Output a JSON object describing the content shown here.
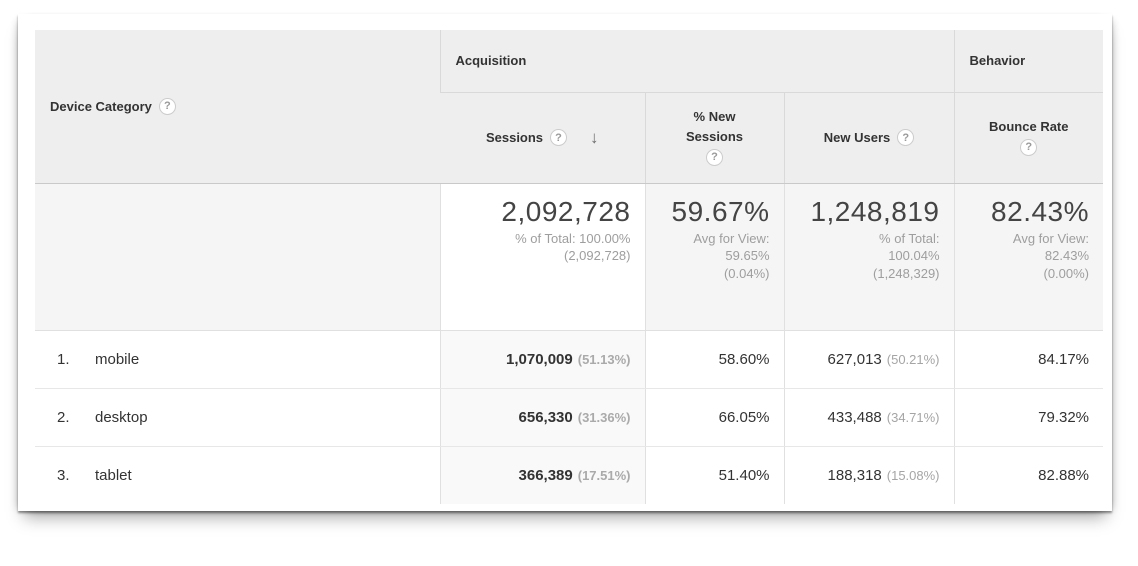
{
  "icons": {
    "help": "?",
    "sort_descending": "↓"
  },
  "colors": {
    "header_bg": "#eeeeee",
    "sorted_column_bg": "#f9f9f9",
    "summary_row_bg": "#f5f5f5",
    "text_primary": "#333333",
    "text_muted": "#9e9e9e"
  },
  "table": {
    "dimension_header": {
      "label": "Device Category"
    },
    "groups": {
      "acquisition": "Acquisition",
      "behavior": "Behavior"
    },
    "columns": {
      "sessions": {
        "label": "Sessions"
      },
      "pct_new_sessions": {
        "label_line1": "% New",
        "label_line2": "Sessions"
      },
      "new_users": {
        "label": "New Users"
      },
      "bounce_rate": {
        "label": "Bounce Rate"
      }
    },
    "summary": {
      "sessions": {
        "value": "2,092,728",
        "note1": "% of Total: 100.00%",
        "note2": "(2,092,728)"
      },
      "pct_new_sessions": {
        "value": "59.67%",
        "note1": "Avg for View:",
        "note2": "59.65%",
        "note3": "(0.04%)"
      },
      "new_users": {
        "value": "1,248,819",
        "note1": "% of Total:",
        "note2": "100.04%",
        "note3": "(1,248,329)"
      },
      "bounce_rate": {
        "value": "82.43%",
        "note1": "Avg for View:",
        "note2": "82.43%",
        "note3": "(0.00%)"
      }
    },
    "rows": [
      {
        "index": "1.",
        "label": "mobile",
        "sessions": "1,070,009",
        "sessions_pct": "(51.13%)",
        "pct_new_sessions": "58.60%",
        "new_users": "627,013",
        "new_users_pct": "(50.21%)",
        "bounce_rate": "84.17%"
      },
      {
        "index": "2.",
        "label": "desktop",
        "sessions": "656,330",
        "sessions_pct": "(31.36%)",
        "pct_new_sessions": "66.05%",
        "new_users": "433,488",
        "new_users_pct": "(34.71%)",
        "bounce_rate": "79.32%"
      },
      {
        "index": "3.",
        "label": "tablet",
        "sessions": "366,389",
        "sessions_pct": "(17.51%)",
        "pct_new_sessions": "51.40%",
        "new_users": "188,318",
        "new_users_pct": "(15.08%)",
        "bounce_rate": "82.88%"
      }
    ]
  }
}
